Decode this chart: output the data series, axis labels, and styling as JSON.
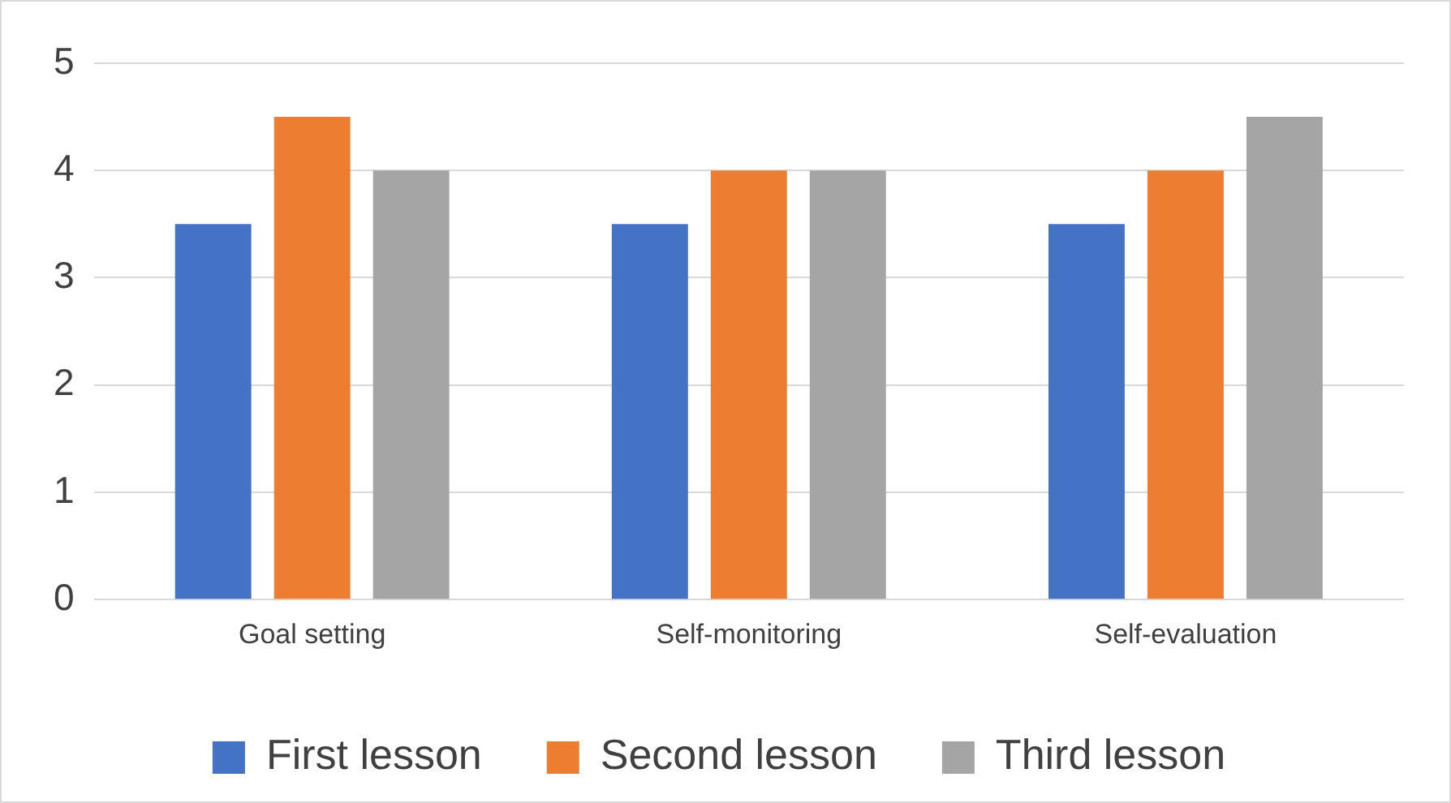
{
  "chart_data": {
    "type": "bar",
    "categories": [
      "Goal setting",
      "Self-monitoring",
      "Self-evaluation"
    ],
    "series": [
      {
        "name": "First lesson",
        "color": "#4472c4",
        "values": [
          3.5,
          3.5,
          3.5
        ]
      },
      {
        "name": "Second lesson",
        "color": "#ed7d31",
        "values": [
          4.5,
          4,
          4
        ]
      },
      {
        "name": "Third lesson",
        "color": "#a5a5a5",
        "values": [
          4,
          4,
          4.5
        ]
      }
    ],
    "ylim": [
      0,
      5
    ],
    "yticks": [
      0,
      1,
      2,
      3,
      4,
      5
    ],
    "grid": "y",
    "legend": "bottom"
  }
}
